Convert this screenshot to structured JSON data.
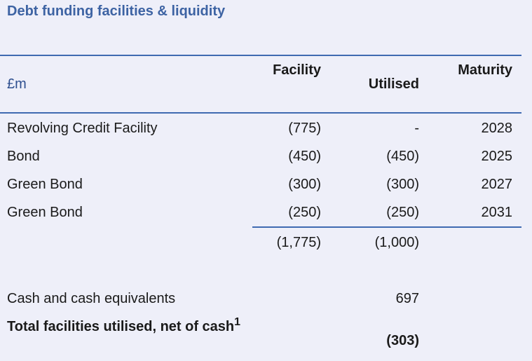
{
  "title": "Debt funding facilities & liquidity",
  "header": {
    "unit": "£m",
    "facility": "Facility",
    "utilised": "Utilised",
    "maturity": "Maturity"
  },
  "rows": [
    {
      "label": "Revolving Credit Facility",
      "facility": "(775)",
      "utilised": "-",
      "maturity": "2028"
    },
    {
      "label": "Bond",
      "facility": "(450)",
      "utilised": "(450)",
      "maturity": "2025"
    },
    {
      "label": "Green Bond",
      "facility": "(300)",
      "utilised": "(300)",
      "maturity": "2027"
    },
    {
      "label": "Green Bond",
      "facility": "(250)",
      "utilised": "(250)",
      "maturity": "2031"
    }
  ],
  "totals": {
    "facility": "(1,775)",
    "utilised": "(1,000)"
  },
  "cash": {
    "label": "Cash and cash equivalents",
    "utilised": "697"
  },
  "net": {
    "label": "Total facilities utilised, net of cash",
    "footnote": "1",
    "utilised": "(303)"
  },
  "colors": {
    "accent": "#3f6ab1",
    "title": "#3d63a3",
    "background": "#eeeff9"
  }
}
